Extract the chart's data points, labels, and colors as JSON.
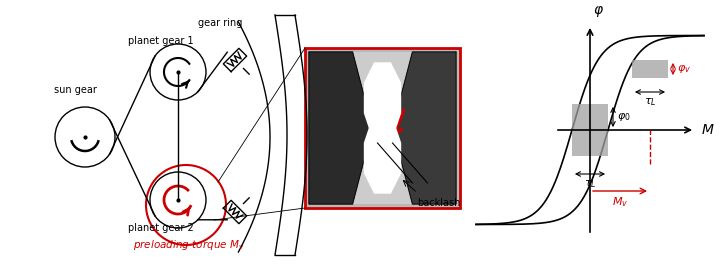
{
  "bg_color": "#ffffff",
  "red_color": "#cc0000",
  "label_sun": "sun gear",
  "label_planet1": "planet gear 1",
  "label_planet2": "planet gear 2",
  "label_gear_ring": "gear ring",
  "label_backlash": "backlash",
  "label_preload": "preloading torque $M_v$",
  "label_phi": "$\\varphi$",
  "label_M": "$M$",
  "label_phi_v": "$\\varphi_v$",
  "label_phi_0": "$\\varphi_0$",
  "label_tau_L_top": "$\\tau_L$",
  "label_tau_L_bot": "$\\tau_L$",
  "label_Mv": "$M_v$"
}
